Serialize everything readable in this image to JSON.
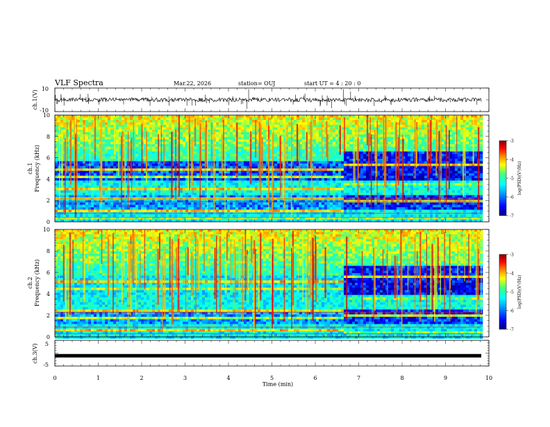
{
  "header": {
    "title": "VLF Spectra",
    "date": "Mar.22, 2026",
    "station": "station= OUJ",
    "start": "start  UT =   4 : 20 : 0"
  },
  "chart_data": [
    {
      "type": "line",
      "ylabel": "ch.1(V)",
      "ylim": [
        -10,
        10
      ],
      "yticks_labeled": [
        "10",
        "-10"
      ],
      "xlim": [
        0,
        10
      ],
      "trace": "noisy waveform near 0 V with sparse spikes",
      "color": "#000000"
    },
    {
      "type": "heatmap",
      "ylabel_channel": "ch.1",
      "ylabel": "Frequency  (kHz)",
      "ylim": [
        0,
        10
      ],
      "yticks": [
        "0",
        "2",
        "4",
        "6",
        "8",
        "10"
      ],
      "xlim": [
        0,
        10
      ],
      "colorbar": {
        "label": "log(PSD)(V²/Hz)",
        "range": [
          -7,
          -3
        ],
        "ticks": [
          "-3",
          "-4",
          "-5",
          "-6",
          "-7"
        ]
      },
      "features": {
        "transition_min": 6.6,
        "bands_before_khz": [
          4.9,
          4.1,
          3.1,
          2.1,
          1.0,
          0.4
        ],
        "bands_after_khz": [
          5.4,
          3.5,
          1.9,
          0.4
        ]
      }
    },
    {
      "type": "heatmap",
      "ylabel_channel": "ch.2",
      "ylabel": "Frequency  (kHz)",
      "ylim": [
        0,
        10
      ],
      "yticks": [
        "0",
        "2",
        "4",
        "6",
        "8",
        "10"
      ],
      "xlim": [
        0,
        10
      ],
      "colorbar": {
        "label": "log(PSD)(V²/Hz)",
        "range": [
          -7,
          -3
        ],
        "ticks": [
          "-3",
          "-4",
          "-5",
          "-6",
          "-7"
        ]
      },
      "features": {
        "transition_min": 6.6,
        "bands_before_khz": [
          5.1,
          4.4,
          2.4,
          1.7,
          0.6
        ],
        "bands_after_khz": [
          5.5,
          3.6,
          2.0,
          0.5
        ]
      }
    },
    {
      "type": "line",
      "ylabel": "ch.3(V)",
      "ylim": [
        -5,
        5
      ],
      "yticks_labeled": [
        "5",
        "-5"
      ],
      "xlim": [
        0,
        10
      ],
      "xlabel": "Time  (min)",
      "xticks": [
        "0",
        "1",
        "2",
        "3",
        "4",
        "5",
        "6",
        "7",
        "8",
        "9",
        "10"
      ],
      "constant_value": -1,
      "color": "#000000"
    }
  ],
  "colors": {
    "axis": "#000000",
    "colormap": [
      "#000080",
      "#0000ff",
      "#00a0ff",
      "#00ffff",
      "#40ff80",
      "#ffff00",
      "#ff8000",
      "#ff0000",
      "#800000"
    ]
  }
}
